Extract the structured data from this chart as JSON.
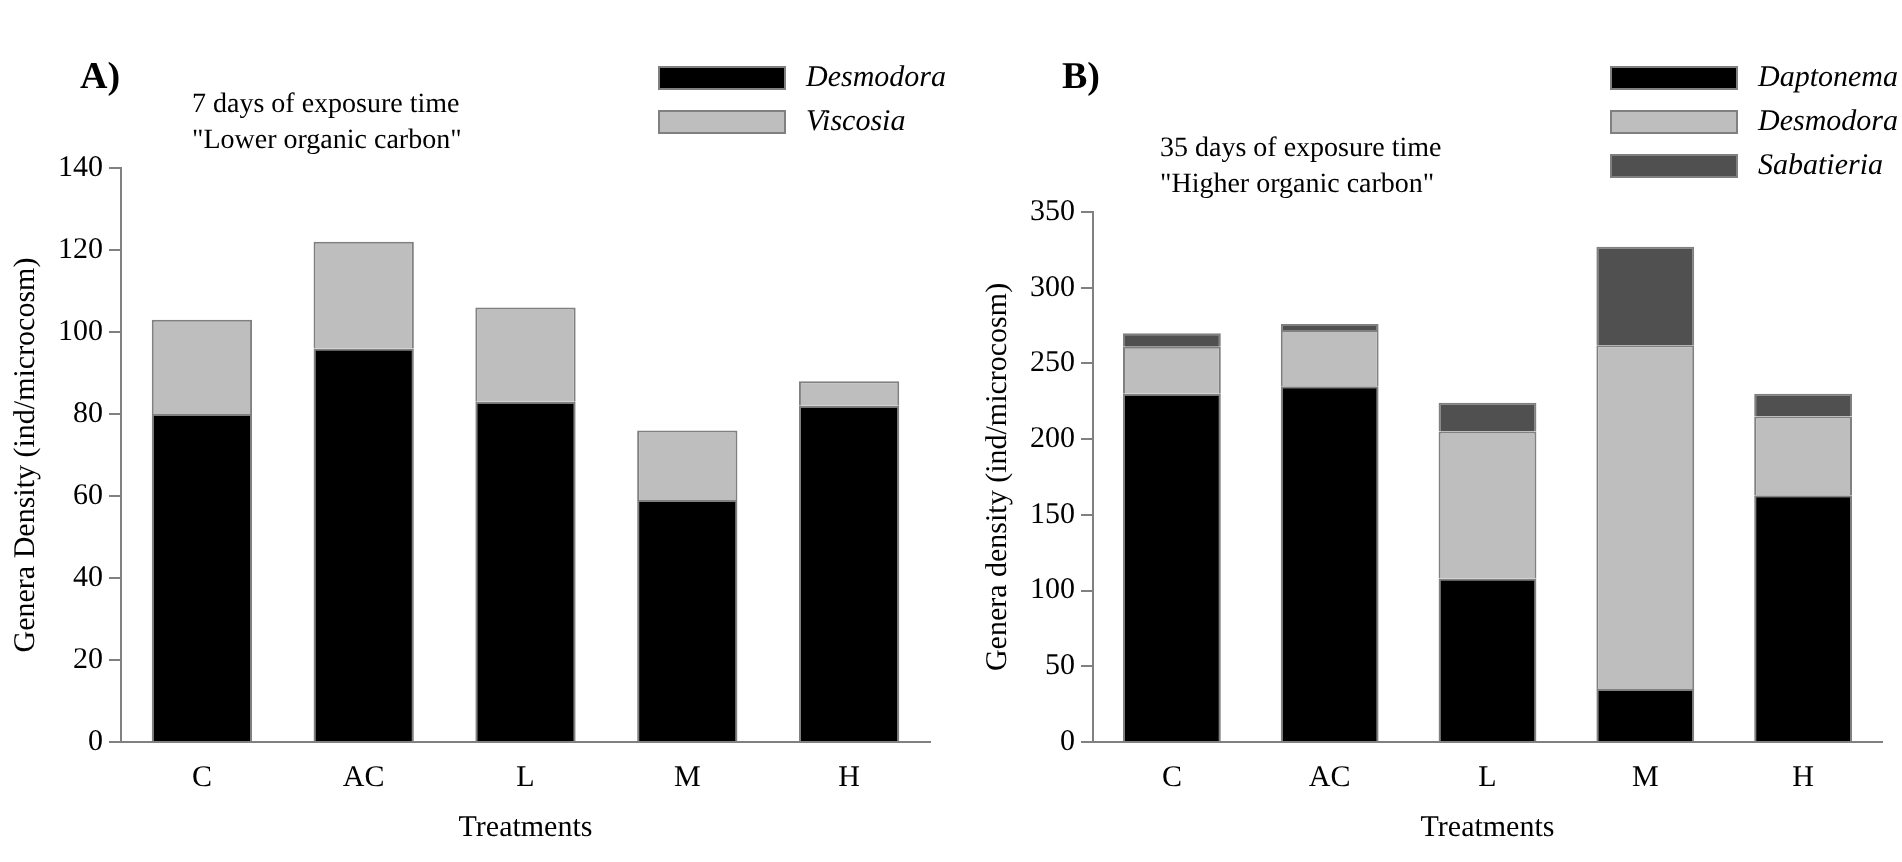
{
  "chart_data": [
    {
      "type": "bar",
      "title": "A)",
      "annotations": [
        "7 days of exposure time",
        "\"Lower organic carbon\""
      ],
      "xlabel": "Treatments",
      "ylabel": "Genera Density (ind/microcosm)",
      "categories": [
        "C",
        "AC",
        "L",
        "M",
        "H"
      ],
      "stacked": true,
      "legend": "top right",
      "grid": false,
      "ylim": [
        0,
        140
      ],
      "yticks": [
        0,
        20,
        40,
        60,
        80,
        100,
        120,
        140
      ],
      "series": [
        {
          "name": "Desmodora",
          "color": "#000000",
          "values": [
            80,
            96,
            83,
            59,
            82
          ]
        },
        {
          "name": "Viscosia",
          "color": "#bebebe",
          "values": [
            23,
            26,
            23,
            17,
            6
          ]
        }
      ]
    },
    {
      "type": "bar",
      "title": "B)",
      "annotations": [
        "35 days of exposure time",
        "\"Higher organic carbon\""
      ],
      "xlabel": "Treatments",
      "ylabel": "Genera density (ind/microcosm)",
      "categories": [
        "C",
        "AC",
        "L",
        "M",
        "H"
      ],
      "stacked": true,
      "legend": "top right",
      "grid": false,
      "ylim": [
        0,
        350
      ],
      "yticks": [
        0,
        50,
        100,
        150,
        200,
        250,
        300,
        350
      ],
      "series": [
        {
          "name": "Daptonema",
          "color": "#000000",
          "values": [
            230,
            235,
            108,
            35,
            163
          ]
        },
        {
          "name": "Desmodora",
          "color": "#bebebe",
          "values": [
            31,
            37,
            97,
            227,
            52
          ]
        },
        {
          "name": "Sabatieria",
          "color": "#505050",
          "values": [
            9,
            4,
            19,
            65,
            15
          ]
        }
      ]
    }
  ]
}
